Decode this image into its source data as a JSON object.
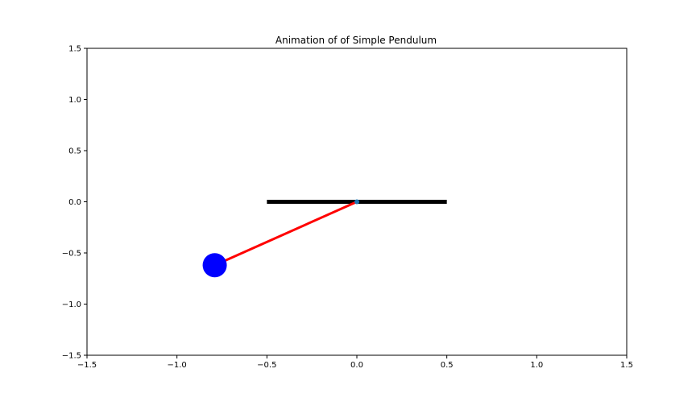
{
  "chart_data": {
    "type": "scatter",
    "title": "Animation of of Simple Pendulum",
    "xlabel": "",
    "ylabel": "",
    "xlim": [
      -1.5,
      1.5
    ],
    "ylim": [
      -1.5,
      1.5
    ],
    "grid": false,
    "x_ticks": [
      -1.5,
      -1.0,
      -0.5,
      0.0,
      0.5,
      1.0,
      1.5
    ],
    "x_tick_labels": [
      "−1.5",
      "−1.0",
      "−0.5",
      "0.0",
      "0.5",
      "1.0",
      "1.5"
    ],
    "y_ticks": [
      1.5,
      1.0,
      0.5,
      0.0,
      -0.5,
      -1.0,
      -1.5
    ],
    "y_tick_labels": [
      "1.5",
      "1.0",
      "0.5",
      "0.0",
      "−0.5",
      "−1.0",
      "−1.5"
    ],
    "ceiling": {
      "x": [
        -0.5,
        0.5
      ],
      "y": [
        0.0,
        0.0
      ],
      "color": "#000000"
    },
    "pivot": {
      "x": 0.0,
      "y": 0.0,
      "color": "#1f77b4"
    },
    "rod": {
      "x": [
        0.0,
        -0.79
      ],
      "y": [
        0.0,
        -0.62
      ],
      "color": "#ff0000"
    },
    "bob": {
      "x": -0.79,
      "y": -0.62,
      "color": "#0000ff"
    }
  }
}
